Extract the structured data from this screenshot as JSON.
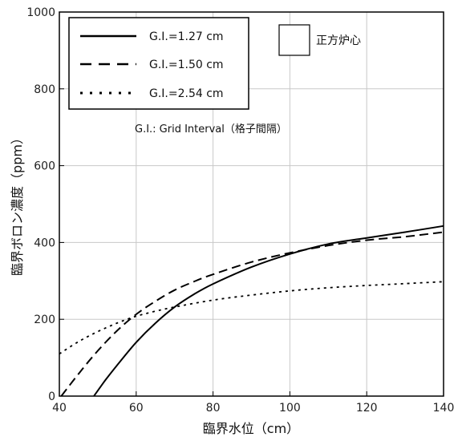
{
  "chart_data": {
    "type": "line",
    "xlabel": "臨界水位（cm）",
    "ylabel": "臨界ボロン濃度（ppm）",
    "xlim": [
      40,
      140
    ],
    "ylim": [
      0,
      1000
    ],
    "xticks": [
      "40",
      "60",
      "80",
      "100",
      "120",
      "140"
    ],
    "yticks": [
      "0",
      "200",
      "400",
      "600",
      "800",
      "1000"
    ],
    "grid": true,
    "legend_position": "top-left",
    "core_label": "正方炉心",
    "note": "G.I.: Grid Interval（格子間隔）",
    "series": [
      {
        "name": "G.I.=1.27 cm",
        "dash": "solid",
        "x": [
          49,
          52,
          55,
          60,
          65,
          70,
          75,
          80,
          90,
          100,
          110,
          120,
          130,
          140
        ],
        "y": [
          0,
          42,
          80,
          140,
          190,
          232,
          265,
          292,
          336,
          370,
          396,
          412,
          427,
          443
        ]
      },
      {
        "name": "G.I.=1.50 cm",
        "dash": "dashed",
        "x": [
          40.5,
          45,
          50,
          55,
          60,
          65,
          70,
          75,
          80,
          90,
          100,
          110,
          120,
          130,
          140
        ],
        "y": [
          0,
          58,
          118,
          170,
          213,
          247,
          276,
          298,
          317,
          349,
          373,
          392,
          406,
          415,
          427
        ]
      },
      {
        "name": "G.I.=2.54 cm",
        "dash": "dotted",
        "x": [
          40,
          45,
          50,
          55,
          60,
          65,
          70,
          80,
          90,
          100,
          110,
          120,
          130,
          140
        ],
        "y": [
          110,
          142,
          168,
          190,
          208,
          221,
          232,
          250,
          263,
          274,
          282,
          288,
          293,
          298
        ]
      }
    ]
  }
}
